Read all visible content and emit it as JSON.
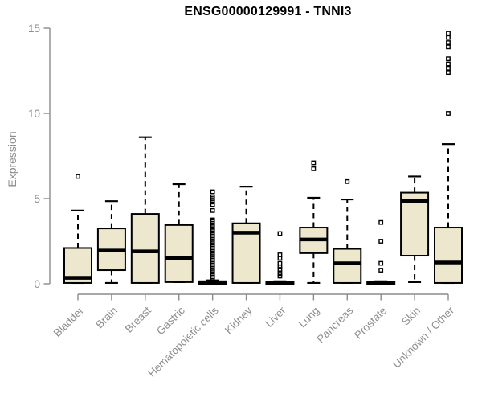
{
  "colors": {
    "box_fill": "#ede8cd",
    "box_border": "#000000",
    "median": "#000000",
    "whisker": "#000000",
    "outlier": "#000000",
    "axis": "#8c8c8c",
    "tick_text": "#8e8e8e",
    "title_text": "#000000",
    "background": "#ffffff"
  },
  "chart_data": {
    "type": "boxplot",
    "title": "ENSG00000129991 - TNNI3",
    "ylabel": "Expression",
    "xlabel": "",
    "ylim": [
      0,
      15
    ],
    "yticks": [
      0,
      5,
      10,
      15
    ],
    "grid": false,
    "legend": false,
    "categories": [
      "Bladder",
      "Brain",
      "Breast",
      "Gastric",
      "Hematopoietic cells",
      "Kidney",
      "Liver",
      "Lung",
      "Pancreas",
      "Prostate",
      "Skin",
      "Unknown / Other"
    ],
    "series": [
      {
        "category": "Bladder",
        "low": 0.05,
        "q1": 0.05,
        "median": 0.35,
        "q3": 2.1,
        "high": 4.3,
        "outliers": [
          6.3
        ]
      },
      {
        "category": "Brain",
        "low": 0.05,
        "q1": 0.8,
        "median": 1.95,
        "q3": 3.25,
        "high": 4.85,
        "outliers": []
      },
      {
        "category": "Breast",
        "low": 0.05,
        "q1": 0.05,
        "median": 1.9,
        "q3": 4.1,
        "high": 8.6,
        "outliers": []
      },
      {
        "category": "Gastric",
        "low": 0.1,
        "q1": 0.1,
        "median": 1.5,
        "q3": 3.45,
        "high": 5.85,
        "outliers": []
      },
      {
        "category": "Hematopoietic cells",
        "low": 0.0,
        "q1": 0.0,
        "median": 0.07,
        "q3": 0.15,
        "high": 0.2,
        "outliers": [
          5.4,
          5.1,
          5.0,
          4.9,
          4.8,
          4.65,
          4.3,
          3.75,
          3.65,
          3.55,
          3.45,
          3.35,
          3.2,
          3.1,
          3.0,
          2.9,
          2.8,
          2.7,
          2.6,
          2.5,
          2.4,
          2.3,
          2.2,
          2.1,
          2.0,
          1.9,
          1.8,
          1.7,
          1.6,
          1.5,
          1.4,
          1.3,
          1.2,
          1.1,
          1.0,
          0.9,
          0.8,
          0.7,
          0.6,
          0.5,
          0.4,
          0.3
        ]
      },
      {
        "category": "Kidney",
        "low": 0.05,
        "q1": 0.05,
        "median": 3.0,
        "q3": 3.55,
        "high": 5.7,
        "outliers": []
      },
      {
        "category": "Liver",
        "low": 0.0,
        "q1": 0.0,
        "median": 0.05,
        "q3": 0.12,
        "high": 0.15,
        "outliers": [
          2.95,
          1.7,
          1.5,
          1.2,
          1.0,
          0.85,
          0.6,
          0.45
        ]
      },
      {
        "category": "Lung",
        "low": 0.05,
        "q1": 1.8,
        "median": 2.6,
        "q3": 3.3,
        "high": 5.05,
        "outliers": [
          7.1,
          6.75
        ]
      },
      {
        "category": "Pancreas",
        "low": 0.05,
        "q1": 0.05,
        "median": 1.2,
        "q3": 2.05,
        "high": 4.95,
        "outliers": [
          6.0
        ]
      },
      {
        "category": "Prostate",
        "low": 0.0,
        "q1": 0.0,
        "median": 0.05,
        "q3": 0.12,
        "high": 0.15,
        "outliers": [
          3.6,
          2.5,
          1.2,
          0.8
        ]
      },
      {
        "category": "Skin",
        "low": 0.1,
        "q1": 1.65,
        "median": 4.85,
        "q3": 5.35,
        "high": 6.3,
        "outliers": []
      },
      {
        "category": "Unknown / Other",
        "low": 0.05,
        "q1": 0.05,
        "median": 1.25,
        "q3": 3.3,
        "high": 8.2,
        "outliers": [
          14.7,
          14.45,
          14.15,
          13.9,
          13.2,
          12.9,
          12.65,
          12.4,
          10.0
        ]
      }
    ]
  }
}
